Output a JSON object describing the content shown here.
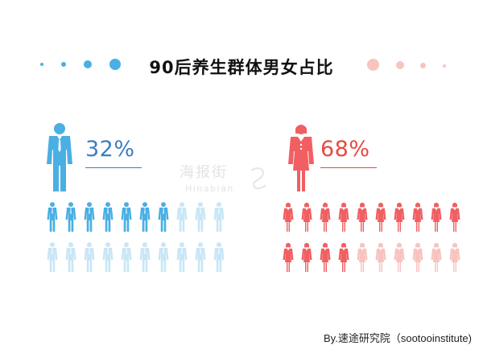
{
  "title": "90后养生群体男女占比",
  "credit": "By.速途研究院（sootooinstitute)",
  "watermark": {
    "main": "海报街",
    "sub": "Hinabian"
  },
  "colors": {
    "male_dark": "#4aafe3",
    "male_light": "#c9e6f5",
    "male_text": "#3a7fc1",
    "female_dark": "#f15f62",
    "female_light": "#f8c3bf",
    "female_text": "#e8483f",
    "title": "#111111"
  },
  "chart_data": {
    "type": "pictograph",
    "title": "90后养生群体男女占比",
    "series": [
      {
        "name": "男",
        "value": 32,
        "label": "32%",
        "icons_total": 20,
        "icons_filled": 7,
        "icon": "male-figure-icon"
      },
      {
        "name": "女",
        "value": 68,
        "label": "68%",
        "icons_total": 20,
        "icons_filled": 14,
        "icon": "female-figure-icon"
      }
    ]
  }
}
